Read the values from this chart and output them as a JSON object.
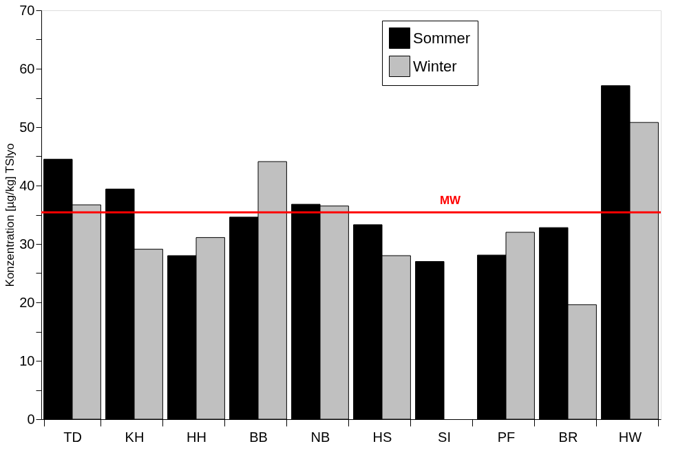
{
  "chart_data": {
    "type": "bar",
    "ylabel": "Konzentration [µg/kg] TSlyo",
    "categories": [
      "TD",
      "KH",
      "HH",
      "BB",
      "NB",
      "HS",
      "SI",
      "PF",
      "BR",
      "HW"
    ],
    "series": [
      {
        "name": "Sommer",
        "color": "#000000",
        "values": [
          44.5,
          39.4,
          28.0,
          34.6,
          36.8,
          33.3,
          27.0,
          28.1,
          32.8,
          57.1
        ]
      },
      {
        "name": "Winter",
        "color": "#c0c0c0",
        "values": [
          36.7,
          29.1,
          31.1,
          44.1,
          36.5,
          28.0,
          null,
          32.0,
          19.6,
          50.8
        ]
      }
    ],
    "ylim": [
      0,
      70
    ],
    "yticks": [
      0,
      {
        "value": 5,
        "label": null
      },
      10,
      {
        "value": 15,
        "label": null
      },
      20,
      {
        "value": 25,
        "label": null
      },
      30,
      {
        "value": 35,
        "label": null
      },
      40,
      {
        "value": 45,
        "label": null
      },
      50,
      {
        "value": 55,
        "label": null
      },
      60,
      {
        "value": 65,
        "label": null
      },
      70
    ],
    "ref_lines": [
      {
        "axis": "y",
        "value": 35.4,
        "label": "MW",
        "color": "#ff0000"
      }
    ],
    "grid": false,
    "legend": "top right"
  }
}
